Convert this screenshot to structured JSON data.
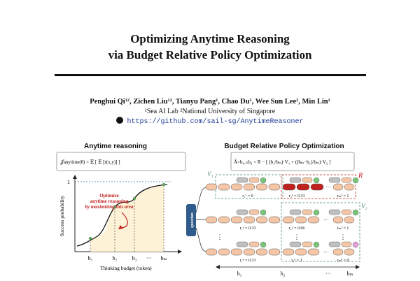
{
  "title_line1": "Optimizing Anytime Reasoning",
  "title_line2": "via Budget Relative Policy Optimization",
  "authors": "Penghui Qi¹², Zichen Liu¹², Tianyu Pang¹, Chao Du¹, Wee Sun Lee², Min Lin¹",
  "affiliations": "¹Sea AI Lab   ²National University of Singapore",
  "repo_url": "https://github.com/sail-sg/AnytimeReasoner",
  "left_figure": {
    "title": "Anytime reasoning",
    "formula": "𝒥anytime(θ) = 𝔼 [ 𝔼 [r(x,y)] ]",
    "annotation_line1": "Optimize",
    "annotation_line2": "anytime reasoning",
    "annotation_line3": "by maximizing this area",
    "ylabel": "Success probability",
    "xlabel": "Thinking budget (token)",
    "y_tick": "1",
    "x_ticks": [
      "b₁",
      "b₂",
      "b₃",
      "···",
      "bₘ"
    ]
  },
  "right_figure": {
    "title": "Budget Relative Policy Optimization",
    "formula": "Â>b₁,≤b₂ = R − [ (b₁/bₘ)·V₁ + ((bₘ−b₁)/bₘ)·V₂ ]",
    "question_label": "question",
    "think_label": "think",
    "v1_label": "V₁",
    "v2_label": "V₂",
    "r_label": "R",
    "rewards_row1": [
      "r₁¹ = 0",
      "r₂¹ = 0.33",
      "rₘ¹ = 1"
    ],
    "rewards_row2": [
      "r₁² = 0.33",
      "r₂² = 0.66",
      "rₘ² = 1"
    ],
    "rewards_row3": [
      "r₁ⁿ = 0.33",
      "r₂ⁿ = 1",
      "rₘⁿ = 0"
    ],
    "dots": "···",
    "vdots": "⋮",
    "budget_ticks": [
      "b₁",
      "b₂",
      "bₘ"
    ]
  },
  "colors": {
    "text": "#111111",
    "link": "#1f3a93",
    "area_fill": "#fdf1d6",
    "curve_dot_green": "#5aa05a",
    "highlight_red": "#c0221f",
    "token_fill": "#f4c6a6",
    "think_fill": "#bfbfbf",
    "question_fill": "#2f5c8a",
    "v_box": "#4a8a6a",
    "r_box": "#c0221f",
    "reward_green": "#7ac47a",
    "reward_pink": "#e0a0d8"
  }
}
